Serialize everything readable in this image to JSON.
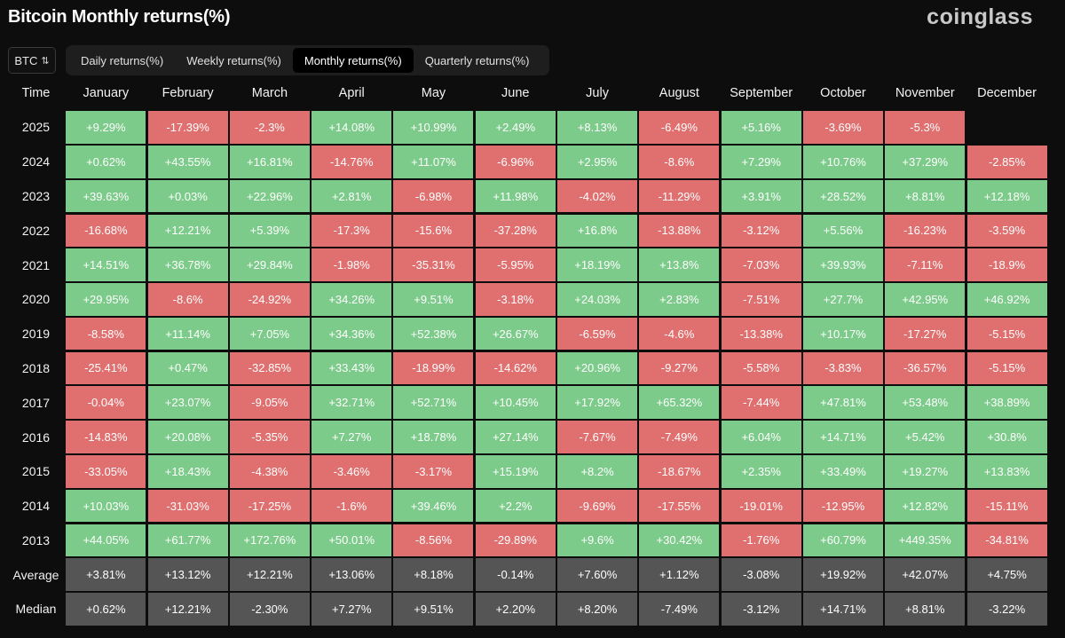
{
  "page": {
    "title": "Bitcoin Monthly returns(%)",
    "logo": "coinglass",
    "asset_select": {
      "value": "BTC"
    },
    "tabs": [
      {
        "label": "Daily returns(%)",
        "active": false
      },
      {
        "label": "Weekly returns(%)",
        "active": false
      },
      {
        "label": "Monthly returns(%)",
        "active": true
      },
      {
        "label": "Quarterly returns(%)",
        "active": false
      }
    ]
  },
  "colors": {
    "positive": "#7ccb8a",
    "negative": "#e06f6f",
    "summary": "#555555",
    "background": "#0d0d0d"
  },
  "chart_data": {
    "type": "table",
    "title": "Bitcoin Monthly returns(%)",
    "corner_label": "Time",
    "columns": [
      "January",
      "February",
      "March",
      "April",
      "May",
      "June",
      "July",
      "August",
      "September",
      "October",
      "November",
      "December"
    ],
    "rows": [
      {
        "label": "2025",
        "values": [
          "+9.29%",
          "-17.39%",
          "-2.3%",
          "+14.08%",
          "+10.99%",
          "+2.49%",
          "+8.13%",
          "-6.49%",
          "+5.16%",
          "-3.69%",
          "-5.3%",
          ""
        ]
      },
      {
        "label": "2024",
        "values": [
          "+0.62%",
          "+43.55%",
          "+16.81%",
          "-14.76%",
          "+11.07%",
          "-6.96%",
          "+2.95%",
          "-8.6%",
          "+7.29%",
          "+10.76%",
          "+37.29%",
          "-2.85%"
        ]
      },
      {
        "label": "2023",
        "values": [
          "+39.63%",
          "+0.03%",
          "+22.96%",
          "+2.81%",
          "-6.98%",
          "+11.98%",
          "-4.02%",
          "-11.29%",
          "+3.91%",
          "+28.52%",
          "+8.81%",
          "+12.18%"
        ]
      },
      {
        "label": "2022",
        "values": [
          "-16.68%",
          "+12.21%",
          "+5.39%",
          "-17.3%",
          "-15.6%",
          "-37.28%",
          "+16.8%",
          "-13.88%",
          "-3.12%",
          "+5.56%",
          "-16.23%",
          "-3.59%"
        ]
      },
      {
        "label": "2021",
        "values": [
          "+14.51%",
          "+36.78%",
          "+29.84%",
          "-1.98%",
          "-35.31%",
          "-5.95%",
          "+18.19%",
          "+13.8%",
          "-7.03%",
          "+39.93%",
          "-7.11%",
          "-18.9%"
        ]
      },
      {
        "label": "2020",
        "values": [
          "+29.95%",
          "-8.6%",
          "-24.92%",
          "+34.26%",
          "+9.51%",
          "-3.18%",
          "+24.03%",
          "+2.83%",
          "-7.51%",
          "+27.7%",
          "+42.95%",
          "+46.92%"
        ]
      },
      {
        "label": "2019",
        "values": [
          "-8.58%",
          "+11.14%",
          "+7.05%",
          "+34.36%",
          "+52.38%",
          "+26.67%",
          "-6.59%",
          "-4.6%",
          "-13.38%",
          "+10.17%",
          "-17.27%",
          "-5.15%"
        ]
      },
      {
        "label": "2018",
        "values": [
          "-25.41%",
          "+0.47%",
          "-32.85%",
          "+33.43%",
          "-18.99%",
          "-14.62%",
          "+20.96%",
          "-9.27%",
          "-5.58%",
          "-3.83%",
          "-36.57%",
          "-5.15%"
        ]
      },
      {
        "label": "2017",
        "values": [
          "-0.04%",
          "+23.07%",
          "-9.05%",
          "+32.71%",
          "+52.71%",
          "+10.45%",
          "+17.92%",
          "+65.32%",
          "-7.44%",
          "+47.81%",
          "+53.48%",
          "+38.89%"
        ]
      },
      {
        "label": "2016",
        "values": [
          "-14.83%",
          "+20.08%",
          "-5.35%",
          "+7.27%",
          "+18.78%",
          "+27.14%",
          "-7.67%",
          "-7.49%",
          "+6.04%",
          "+14.71%",
          "+5.42%",
          "+30.8%"
        ]
      },
      {
        "label": "2015",
        "values": [
          "-33.05%",
          "+18.43%",
          "-4.38%",
          "-3.46%",
          "-3.17%",
          "+15.19%",
          "+8.2%",
          "-18.67%",
          "+2.35%",
          "+33.49%",
          "+19.27%",
          "+13.83%"
        ]
      },
      {
        "label": "2014",
        "values": [
          "+10.03%",
          "-31.03%",
          "-17.25%",
          "-1.6%",
          "+39.46%",
          "+2.2%",
          "-9.69%",
          "-17.55%",
          "-19.01%",
          "-12.95%",
          "+12.82%",
          "-15.11%"
        ]
      },
      {
        "label": "2013",
        "values": [
          "+44.05%",
          "+61.77%",
          "+172.76%",
          "+50.01%",
          "-8.56%",
          "-29.89%",
          "+9.6%",
          "+30.42%",
          "-1.76%",
          "+60.79%",
          "+449.35%",
          "-34.81%"
        ]
      }
    ],
    "summary_rows": [
      {
        "label": "Average",
        "values": [
          "+3.81%",
          "+13.12%",
          "+12.21%",
          "+13.06%",
          "+8.18%",
          "-0.14%",
          "+7.60%",
          "+1.12%",
          "-3.08%",
          "+19.92%",
          "+42.07%",
          "+4.75%"
        ]
      },
      {
        "label": "Median",
        "values": [
          "+0.62%",
          "+12.21%",
          "-2.30%",
          "+7.27%",
          "+9.51%",
          "+2.20%",
          "+8.20%",
          "-7.49%",
          "-3.12%",
          "+14.71%",
          "+8.81%",
          "-3.22%"
        ]
      }
    ]
  }
}
